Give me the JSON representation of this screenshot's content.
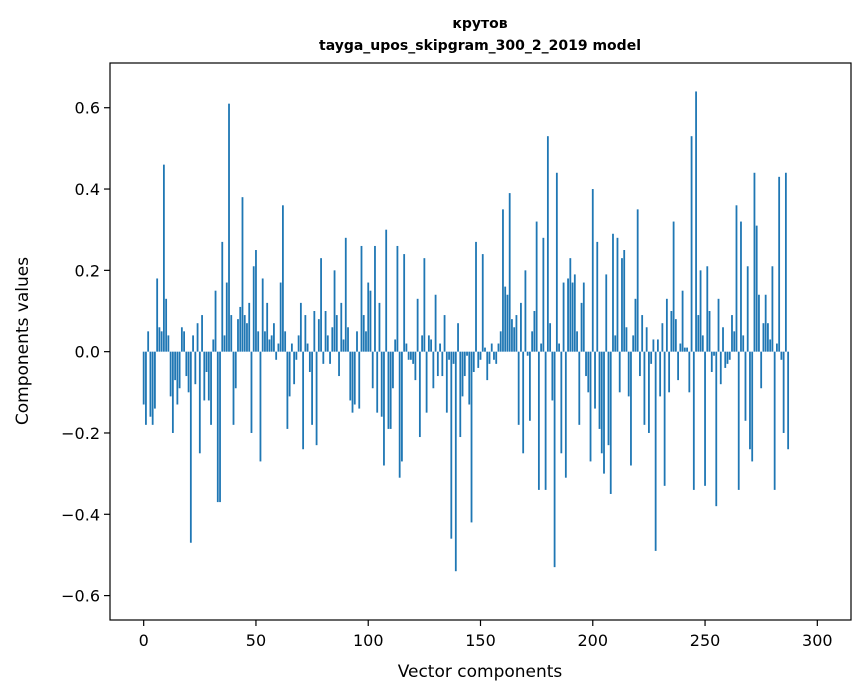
{
  "chart_data": {
    "type": "bar",
    "title": "крутов",
    "subtitle": "tayga_upos_skipgram_300_2_2019 model",
    "xlabel": "Vector components",
    "ylabel": "Components values",
    "xlim": [
      -15,
      315
    ],
    "ylim": [
      -0.66,
      0.71
    ],
    "xticks": [
      0,
      50,
      100,
      150,
      200,
      250,
      300
    ],
    "yticks": [
      -0.6,
      -0.4,
      -0.2,
      0.0,
      0.2,
      0.4,
      0.6
    ],
    "ytick_labels": [
      "−0.6",
      "−0.4",
      "−0.2",
      "0.0",
      "0.2",
      "0.4",
      "0.6"
    ],
    "grid": false,
    "bar_color": "#1f77b4",
    "values": [
      -0.13,
      -0.18,
      0.05,
      -0.16,
      -0.18,
      -0.14,
      0.18,
      0.06,
      0.05,
      0.46,
      0.13,
      0.04,
      -0.11,
      -0.2,
      -0.07,
      -0.13,
      -0.09,
      0.06,
      0.05,
      -0.06,
      -0.1,
      -0.47,
      0.04,
      -0.08,
      0.07,
      -0.25,
      0.09,
      -0.12,
      -0.05,
      -0.12,
      -0.18,
      0.03,
      0.15,
      -0.37,
      -0.37,
      0.27,
      0.04,
      0.17,
      0.61,
      0.09,
      -0.18,
      -0.09,
      0.08,
      0.11,
      0.38,
      0.09,
      0.07,
      0.12,
      -0.2,
      0.21,
      0.25,
      0.05,
      -0.27,
      0.18,
      0.05,
      0.12,
      0.03,
      0.04,
      0.07,
      -0.02,
      0.02,
      0.17,
      0.36,
      0.05,
      -0.19,
      -0.11,
      0.02,
      -0.08,
      -0.02,
      0.04,
      0.12,
      -0.24,
      0.09,
      0.02,
      -0.05,
      -0.18,
      0.1,
      -0.23,
      0.08,
      0.23,
      -0.03,
      0.1,
      0.04,
      -0.03,
      0.06,
      0.2,
      0.09,
      -0.06,
      0.12,
      0.03,
      0.28,
      0.06,
      -0.12,
      -0.15,
      -0.13,
      0.05,
      -0.14,
      0.26,
      0.09,
      0.05,
      0.17,
      0.15,
      -0.09,
      0.26,
      -0.15,
      0.12,
      -0.16,
      -0.28,
      0.3,
      -0.19,
      -0.19,
      -0.09,
      0.03,
      0.26,
      -0.31,
      -0.27,
      0.24,
      0.02,
      -0.02,
      -0.02,
      -0.03,
      -0.07,
      0.13,
      -0.21,
      0.04,
      0.23,
      -0.15,
      0.04,
      0.03,
      -0.09,
      0.14,
      -0.06,
      0.02,
      -0.06,
      0.09,
      -0.15,
      -0.02,
      -0.46,
      -0.03,
      -0.54,
      0.07,
      -0.21,
      -0.11,
      -0.06,
      -0.01,
      -0.13,
      -0.42,
      -0.05,
      0.27,
      -0.04,
      -0.02,
      0.24,
      0.01,
      -0.07,
      -0.03,
      0.02,
      -0.02,
      -0.03,
      0.02,
      0.05,
      0.35,
      0.16,
      0.14,
      0.39,
      0.08,
      0.06,
      0.09,
      -0.18,
      0.12,
      -0.25,
      0.2,
      -0.01,
      -0.17,
      0.05,
      0.1,
      0.32,
      -0.34,
      0.02,
      0.28,
      -0.34,
      0.53,
      0.07,
      -0.12,
      -0.53,
      0.44,
      0.02,
      -0.25,
      0.17,
      -0.31,
      0.18,
      0.23,
      0.17,
      0.19,
      0.05,
      -0.18,
      0.12,
      0.17,
      -0.06,
      -0.1,
      -0.27,
      0.4,
      -0.14,
      0.27,
      -0.19,
      -0.25,
      -0.3,
      0.19,
      -0.23,
      -0.35,
      0.29,
      0.04,
      0.28,
      -0.1,
      0.23,
      0.25,
      0.06,
      -0.11,
      -0.28,
      0.04,
      0.13,
      0.35,
      -0.06,
      0.09,
      -0.18,
      0.06,
      -0.2,
      -0.03,
      0.03,
      -0.49,
      0.03,
      -0.11,
      0.07,
      -0.33,
      0.13,
      -0.1,
      0.1,
      0.32,
      0.08,
      -0.07,
      0.02,
      0.15,
      0.01,
      0.01,
      -0.1,
      0.53,
      -0.34,
      0.64,
      0.09,
      0.2,
      0.04,
      -0.33,
      0.21,
      0.1,
      -0.05,
      -0.01,
      -0.38,
      0.13,
      -0.08,
      0.06,
      -0.04,
      -0.03,
      -0.02,
      0.09,
      0.05,
      0.36,
      -0.34,
      0.32,
      0.04,
      -0.17,
      0.21,
      -0.24,
      -0.27,
      0.44,
      0.31,
      0.14,
      -0.09,
      0.07,
      0.14,
      0.07,
      0.03,
      0.21,
      -0.34,
      0.02,
      0.43,
      -0.02,
      -0.2,
      0.44,
      -0.24
    ]
  }
}
